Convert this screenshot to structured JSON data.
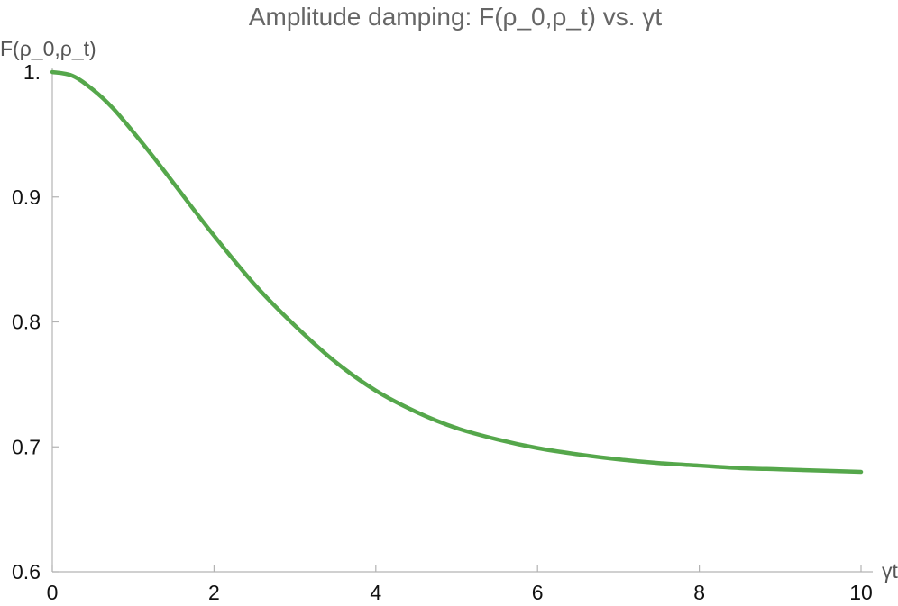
{
  "chart_data": {
    "type": "line",
    "title": "Amplitude damping: F(ρ_0,ρ_t) vs. γt",
    "xlabel": "γt",
    "ylabel": "F(ρ_0,ρ_t)",
    "xlim": [
      0,
      10
    ],
    "ylim": [
      0.6,
      1.0
    ],
    "x_ticks": [
      0,
      2,
      4,
      6,
      8,
      10
    ],
    "x_tick_labels": [
      "0",
      "2",
      "4",
      "6",
      "8",
      "10"
    ],
    "y_ticks": [
      0.6,
      0.7,
      0.8,
      0.9,
      1.0
    ],
    "y_tick_labels": [
      "0.6",
      "0.7",
      "0.8",
      "0.9",
      "1."
    ],
    "grid": false,
    "legend": "none",
    "colors": {
      "line": "#55a74b",
      "axis": "#b3b3b3",
      "title": "#666666"
    },
    "series": [
      {
        "x": [
          0,
          0.25,
          0.5,
          0.75,
          1,
          1.25,
          1.5,
          2,
          2.5,
          3,
          3.5,
          4,
          4.5,
          5,
          5.5,
          6,
          6.5,
          7,
          7.5,
          8,
          8.5,
          9,
          9.5,
          10
        ],
        "y": [
          1.0,
          0.997,
          0.986,
          0.971,
          0.952,
          0.932,
          0.911,
          0.869,
          0.83,
          0.797,
          0.768,
          0.745,
          0.728,
          0.715,
          0.706,
          0.699,
          0.694,
          0.69,
          0.687,
          0.685,
          0.683,
          0.682,
          0.681,
          0.68
        ]
      }
    ]
  }
}
